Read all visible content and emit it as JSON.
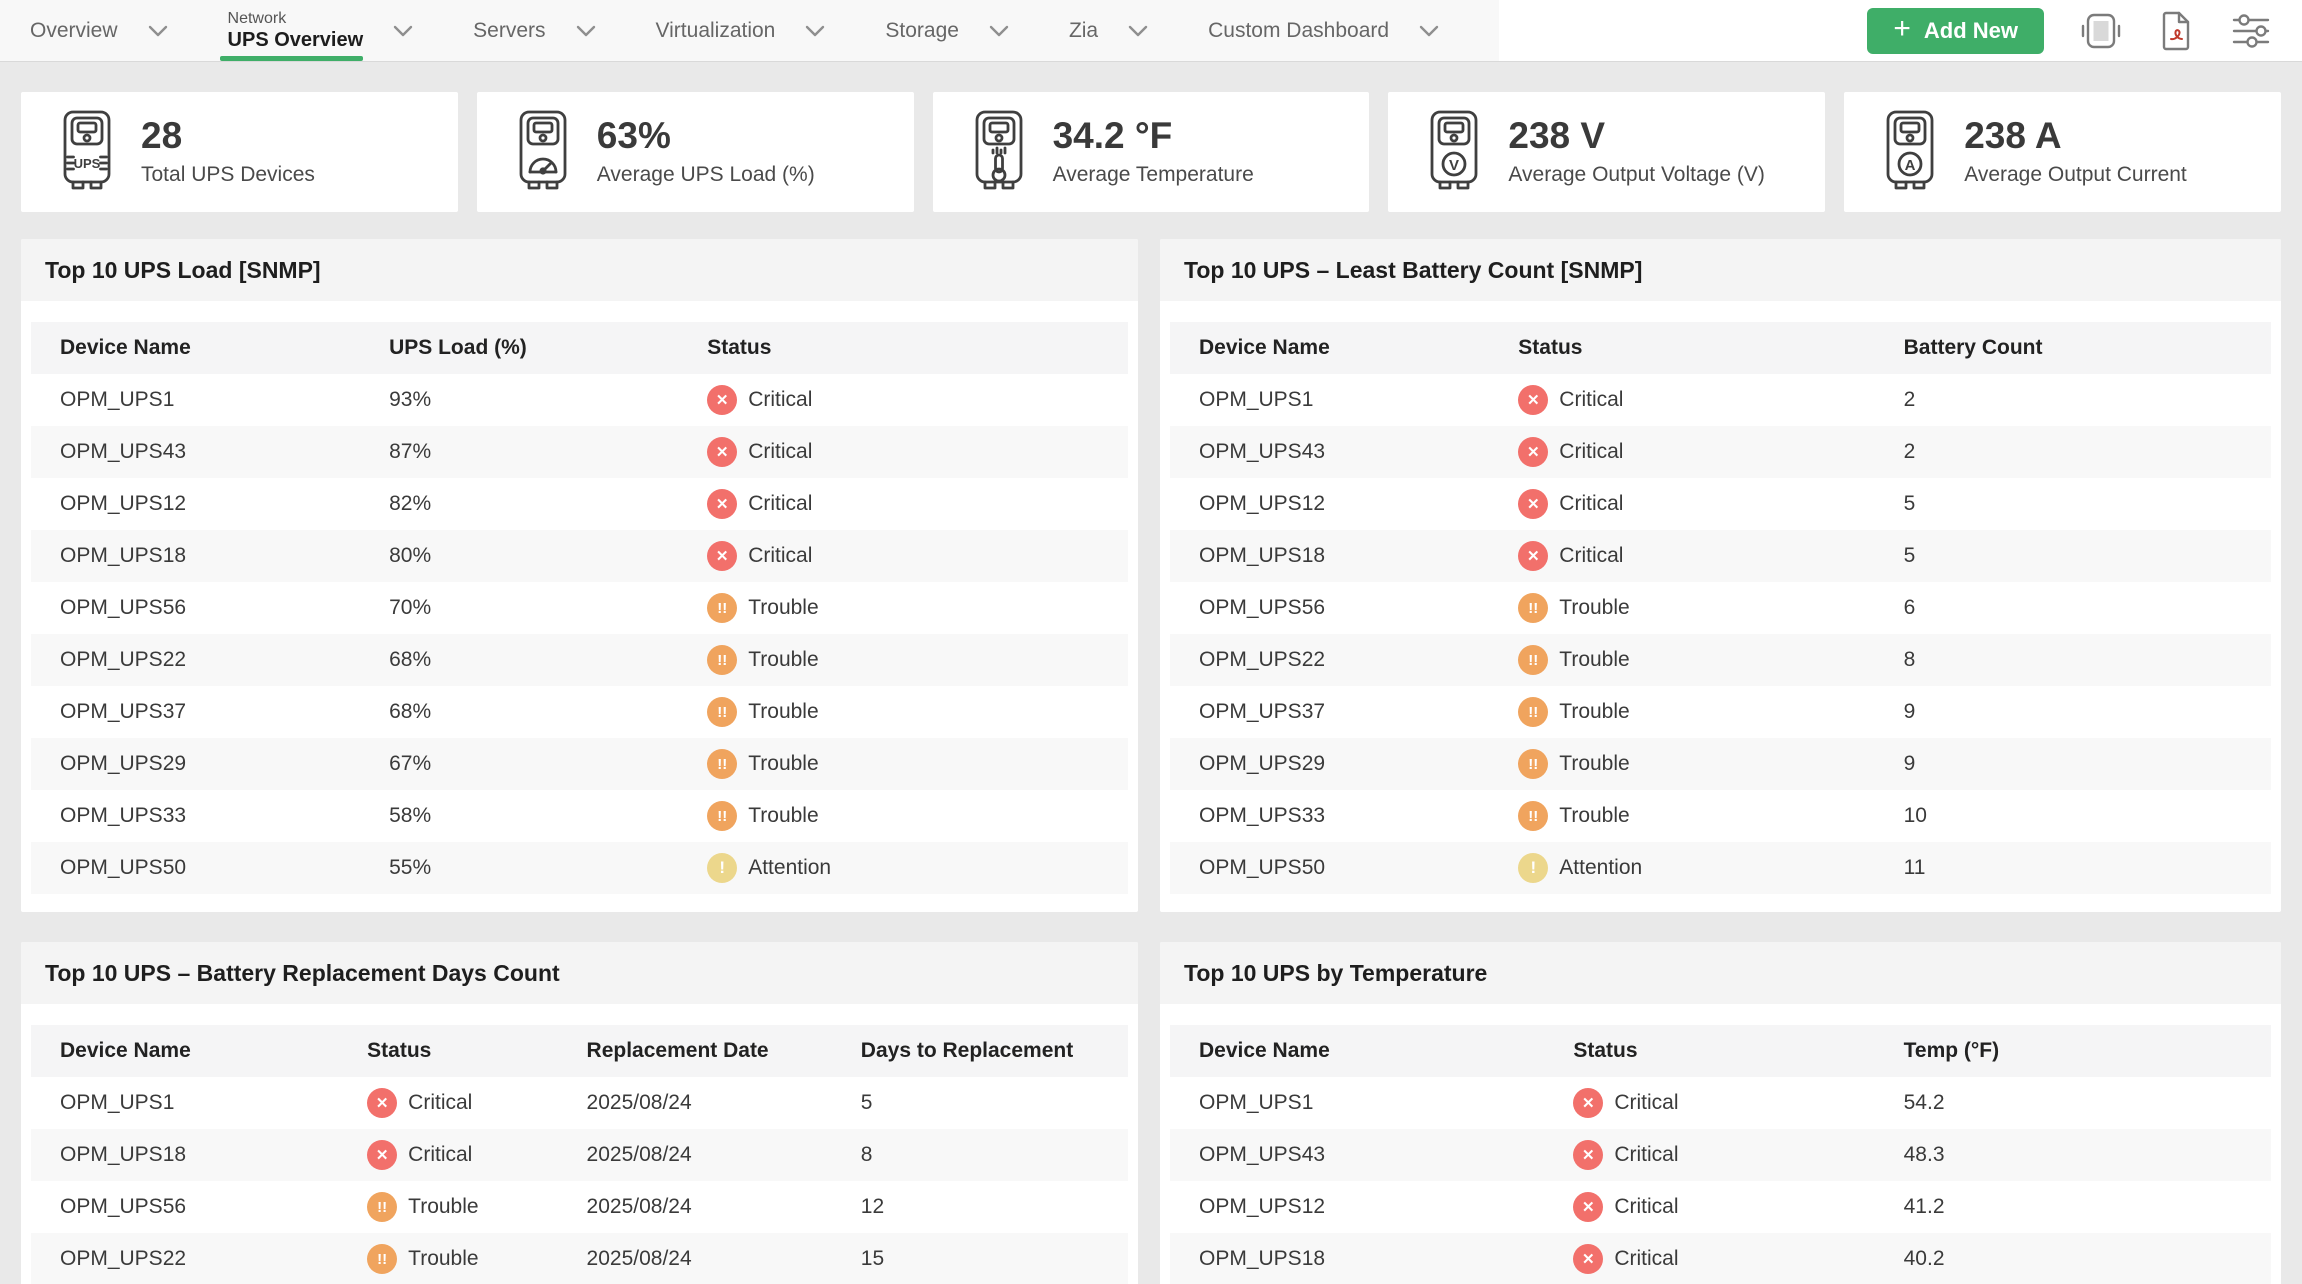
{
  "header": {
    "tabs": [
      {
        "label": "Overview"
      },
      {
        "kicker": "Network",
        "label": "UPS Overview",
        "active": true
      },
      {
        "label": "Servers"
      },
      {
        "label": "Virtualization"
      },
      {
        "label": "Storage"
      },
      {
        "label": "Zia"
      },
      {
        "label": "Custom Dashboard"
      }
    ],
    "toolbar": {
      "add_new_label": "Add New",
      "plus_glyph": "+",
      "icons": [
        "wallboard-icon",
        "pdf-export-icon",
        "settings-sliders-icon"
      ]
    },
    "accent_green": "#3fae68"
  },
  "summary_cards": [
    {
      "value": "28",
      "label": "Total UPS Devices",
      "icon": "ups-device-icon"
    },
    {
      "value": "63%",
      "label": "Average UPS Load (%)",
      "icon": "ups-load-gauge-icon"
    },
    {
      "value": "34.2 °F",
      "label": "Average Temperature",
      "icon": "ups-thermometer-icon"
    },
    {
      "value": "238 V",
      "label": "Average Output Voltage (V)",
      "icon": "ups-voltage-icon"
    },
    {
      "value": "238 A",
      "label": "Average Output Current",
      "icon": "ups-current-icon"
    }
  ],
  "status_styles": {
    "Critical": {
      "color": "#F2706B",
      "glyph": "✕",
      "cls": "g-x"
    },
    "Trouble": {
      "color": "#F0A45E",
      "glyph": "!!",
      "cls": "g-bb"
    },
    "Attention": {
      "color": "#ECD78C",
      "glyph": "!",
      "cls": "g-b"
    }
  },
  "panels": [
    {
      "title": "Top 10 UPS Load [SNMP]",
      "columns": [
        {
          "label": "Device Name",
          "type": "text"
        },
        {
          "label": "UPS Load (%)",
          "type": "text"
        },
        {
          "label": "Status",
          "type": "status"
        }
      ],
      "rows": [
        [
          "OPM_UPS1",
          "93%",
          "Critical"
        ],
        [
          "OPM_UPS43",
          "87%",
          "Critical"
        ],
        [
          "OPM_UPS12",
          "82%",
          "Critical"
        ],
        [
          "OPM_UPS18",
          "80%",
          "Critical"
        ],
        [
          "OPM_UPS56",
          "70%",
          "Trouble"
        ],
        [
          "OPM_UPS22",
          "68%",
          "Trouble"
        ],
        [
          "OPM_UPS37",
          "68%",
          "Trouble"
        ],
        [
          "OPM_UPS29",
          "67%",
          "Trouble"
        ],
        [
          "OPM_UPS33",
          "58%",
          "Trouble"
        ],
        [
          "OPM_UPS50",
          "55%",
          "Attention"
        ]
      ]
    },
    {
      "title": "Top 10 UPS – Least Battery Count [SNMP]",
      "columns": [
        {
          "label": "Device Name",
          "type": "text"
        },
        {
          "label": "Status",
          "type": "status"
        },
        {
          "label": "Battery Count",
          "type": "text"
        }
      ],
      "rows": [
        [
          "OPM_UPS1",
          "Critical",
          "2"
        ],
        [
          "OPM_UPS43",
          "Critical",
          "2"
        ],
        [
          "OPM_UPS12",
          "Critical",
          "5"
        ],
        [
          "OPM_UPS18",
          "Critical",
          "5"
        ],
        [
          "OPM_UPS56",
          "Trouble",
          "6"
        ],
        [
          "OPM_UPS22",
          "Trouble",
          "8"
        ],
        [
          "OPM_UPS37",
          "Trouble",
          "9"
        ],
        [
          "OPM_UPS29",
          "Trouble",
          "9"
        ],
        [
          "OPM_UPS33",
          "Trouble",
          "10"
        ],
        [
          "OPM_UPS50",
          "Attention",
          "11"
        ]
      ]
    },
    {
      "title": "Top 10 UPS – Battery Replacement Days Count",
      "columns": [
        {
          "label": "Device Name",
          "type": "text"
        },
        {
          "label": "Status",
          "type": "status"
        },
        {
          "label": "Replacement Date",
          "type": "text"
        },
        {
          "label": "Days to Replacement",
          "type": "text"
        }
      ],
      "rows": [
        [
          "OPM_UPS1",
          "Critical",
          "2025/08/24",
          "5"
        ],
        [
          "OPM_UPS18",
          "Critical",
          "2025/08/24",
          "8"
        ],
        [
          "OPM_UPS56",
          "Trouble",
          "2025/08/24",
          "12"
        ],
        [
          "OPM_UPS22",
          "Trouble",
          "2025/08/24",
          "15"
        ]
      ]
    },
    {
      "title": "Top 10 UPS by Temperature",
      "columns": [
        {
          "label": "Device Name",
          "type": "text"
        },
        {
          "label": "Status",
          "type": "status"
        },
        {
          "label": "Temp (°F)",
          "type": "text"
        }
      ],
      "rows": [
        [
          "OPM_UPS1",
          "Critical",
          "54.2"
        ],
        [
          "OPM_UPS43",
          "Critical",
          "48.3"
        ],
        [
          "OPM_UPS12",
          "Critical",
          "41.2"
        ],
        [
          "OPM_UPS18",
          "Critical",
          "40.2"
        ]
      ]
    }
  ]
}
